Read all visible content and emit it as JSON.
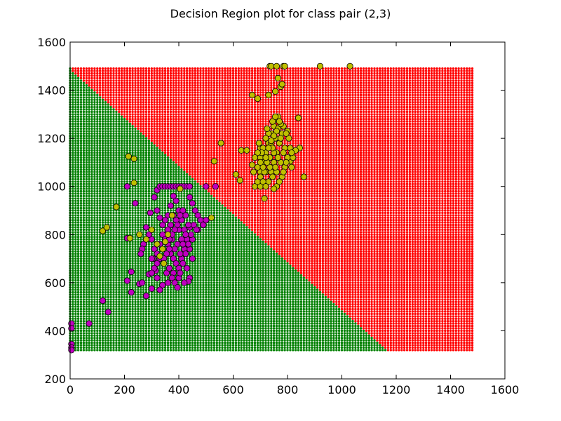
{
  "title": "Decision Region plot for class pair (2,3)",
  "colors": {
    "region_class_2": "#008000",
    "region_class_3": "#ff0000",
    "points_class_2": "#bf00bf",
    "points_class_3": "#bfbf00",
    "point_edge": "#000000"
  },
  "chart_data": {
    "type": "scatter",
    "title": "Decision Region plot for class pair (2,3)",
    "xlabel": "",
    "ylabel": "",
    "xlim": [
      0,
      1600
    ],
    "ylim": [
      200,
      1600
    ],
    "xticks": [
      "0",
      "200",
      "400",
      "600",
      "800",
      "1000",
      "1200",
      "1400",
      "1600"
    ],
    "yticks": [
      "200",
      "400",
      "600",
      "800",
      "1000",
      "1200",
      "1400",
      "1600"
    ],
    "grid": false,
    "decision_region": {
      "grid_x_range": [
        0,
        1480
      ],
      "grid_y_range": [
        320,
        1490
      ],
      "grid_step": 10,
      "boundary_line": [
        [
          0,
          1490
        ],
        [
          1160,
          320
        ]
      ],
      "region_below_boundary": "class 2 (green)",
      "region_above_boundary": "class 3 (red)"
    },
    "series": [
      {
        "color": "#bf00bf",
        "points": [
          [
            5,
            430
          ],
          [
            5,
            410
          ],
          [
            5,
            345
          ],
          [
            5,
            330
          ],
          [
            5,
            320
          ],
          [
            70,
            430
          ],
          [
            120,
            525
          ],
          [
            140,
            478
          ],
          [
            210,
            785
          ],
          [
            210,
            1000
          ],
          [
            210,
            608
          ],
          [
            225,
            645
          ],
          [
            225,
            560
          ],
          [
            240,
            930
          ],
          [
            255,
            595
          ],
          [
            265,
            600
          ],
          [
            280,
            545
          ],
          [
            290,
            635
          ],
          [
            300,
            575
          ],
          [
            305,
            700
          ],
          [
            295,
            890
          ],
          [
            310,
            955
          ],
          [
            320,
            985
          ],
          [
            330,
            1000
          ],
          [
            340,
            1000
          ],
          [
            350,
            1000
          ],
          [
            360,
            1000
          ],
          [
            370,
            1000
          ],
          [
            380,
            1000
          ],
          [
            390,
            1000
          ],
          [
            400,
            1000
          ],
          [
            410,
            1000
          ],
          [
            420,
            1000
          ],
          [
            430,
            1000
          ],
          [
            440,
            1000
          ],
          [
            500,
            1000
          ],
          [
            535,
            1000
          ],
          [
            440,
            955
          ],
          [
            450,
            930
          ],
          [
            460,
            900
          ],
          [
            470,
            880
          ],
          [
            480,
            860
          ],
          [
            490,
            840
          ],
          [
            500,
            860
          ],
          [
            470,
            820
          ],
          [
            440,
            830
          ],
          [
            450,
            780
          ],
          [
            440,
            740
          ],
          [
            450,
            700
          ],
          [
            430,
            660
          ],
          [
            440,
            620
          ],
          [
            435,
            605
          ],
          [
            420,
            600
          ],
          [
            400,
            620
          ],
          [
            380,
            640
          ],
          [
            360,
            600
          ],
          [
            340,
            590
          ],
          [
            330,
            570
          ],
          [
            320,
            620
          ],
          [
            315,
            650
          ],
          [
            300,
            700
          ],
          [
            310,
            740
          ],
          [
            300,
            780
          ],
          [
            290,
            800
          ],
          [
            280,
            830
          ],
          [
            270,
            760
          ],
          [
            265,
            740
          ],
          [
            260,
            720
          ],
          [
            320,
            900
          ],
          [
            330,
            870
          ],
          [
            340,
            840
          ],
          [
            350,
            800
          ],
          [
            360,
            760
          ],
          [
            370,
            720
          ],
          [
            380,
            700
          ],
          [
            390,
            680
          ],
          [
            400,
            660
          ],
          [
            410,
            700
          ],
          [
            420,
            740
          ],
          [
            430,
            780
          ],
          [
            420,
            820
          ],
          [
            410,
            860
          ],
          [
            400,
            900
          ],
          [
            390,
            940
          ],
          [
            380,
            960
          ],
          [
            370,
            920
          ],
          [
            360,
            880
          ],
          [
            350,
            860
          ],
          [
            340,
            800
          ],
          [
            330,
            760
          ],
          [
            320,
            720
          ],
          [
            345,
            680
          ],
          [
            355,
            640
          ],
          [
            365,
            660
          ],
          [
            375,
            620
          ],
          [
            385,
            600
          ],
          [
            395,
            580
          ],
          [
            405,
            640
          ],
          [
            415,
            680
          ],
          [
            425,
            720
          ],
          [
            435,
            760
          ],
          [
            445,
            800
          ],
          [
            455,
            840
          ],
          [
            465,
            820
          ],
          [
            410,
            780
          ],
          [
            400,
            820
          ],
          [
            390,
            860
          ],
          [
            380,
            880
          ],
          [
            370,
            840
          ],
          [
            360,
            820
          ],
          [
            350,
            780
          ],
          [
            340,
            740
          ],
          [
            330,
            700
          ],
          [
            320,
            680
          ],
          [
            310,
            660
          ],
          [
            300,
            640
          ],
          [
            395,
            760
          ],
          [
            385,
            740
          ],
          [
            375,
            780
          ],
          [
            365,
            740
          ],
          [
            355,
            720
          ],
          [
            345,
            700
          ],
          [
            405,
            720
          ],
          [
            415,
            760
          ],
          [
            425,
            800
          ],
          [
            435,
            840
          ],
          [
            425,
            880
          ],
          [
            415,
            900
          ],
          [
            405,
            880
          ],
          [
            395,
            840
          ],
          [
            385,
            820
          ],
          [
            375,
            800
          ],
          [
            365,
            780
          ]
        ]
      },
      {
        "color": "#bfbf00",
        "points": [
          [
            120,
            815
          ],
          [
            135,
            830
          ],
          [
            170,
            915
          ],
          [
            215,
            1125
          ],
          [
            220,
            785
          ],
          [
            235,
            1115
          ],
          [
            235,
            1015
          ],
          [
            255,
            800
          ],
          [
            280,
            780
          ],
          [
            300,
            820
          ],
          [
            320,
            760
          ],
          [
            330,
            710
          ],
          [
            340,
            740
          ],
          [
            345,
            680
          ],
          [
            350,
            770
          ],
          [
            360,
            800
          ],
          [
            375,
            880
          ],
          [
            405,
            990
          ],
          [
            520,
            870
          ],
          [
            530,
            1105
          ],
          [
            555,
            1180
          ],
          [
            610,
            1050
          ],
          [
            625,
            1025
          ],
          [
            630,
            1150
          ],
          [
            650,
            1150
          ],
          [
            670,
            1380
          ],
          [
            690,
            1365
          ],
          [
            700,
            1160
          ],
          [
            715,
            950
          ],
          [
            730,
            1380
          ],
          [
            735,
            1500
          ],
          [
            740,
            1500
          ],
          [
            755,
            1395
          ],
          [
            760,
            1500
          ],
          [
            765,
            1450
          ],
          [
            775,
            1415
          ],
          [
            780,
            1425
          ],
          [
            785,
            1500
          ],
          [
            790,
            1500
          ],
          [
            920,
            1500
          ],
          [
            1030,
            1500
          ],
          [
            840,
            1285
          ],
          [
            845,
            1160
          ],
          [
            860,
            1040
          ],
          [
            800,
            1230
          ],
          [
            810,
            1160
          ],
          [
            810,
            1105
          ],
          [
            815,
            1080
          ],
          [
            760,
            1000
          ],
          [
            750,
            990
          ],
          [
            680,
            1000
          ],
          [
            670,
            1090
          ],
          [
            700,
            1000
          ],
          [
            690,
            1020
          ],
          [
            700,
            1060
          ],
          [
            710,
            1100
          ],
          [
            720,
            1140
          ],
          [
            730,
            1180
          ],
          [
            740,
            1220
          ],
          [
            750,
            1250
          ],
          [
            760,
            1280
          ],
          [
            765,
            1290
          ],
          [
            720,
            1060
          ],
          [
            730,
            1020
          ],
          [
            740,
            1060
          ],
          [
            750,
            1100
          ],
          [
            760,
            1140
          ],
          [
            770,
            1180
          ],
          [
            780,
            1220
          ],
          [
            790,
            1160
          ],
          [
            800,
            1120
          ],
          [
            790,
            1080
          ],
          [
            780,
            1040
          ],
          [
            770,
            1020
          ],
          [
            760,
            1060
          ],
          [
            750,
            1140
          ],
          [
            740,
            1180
          ],
          [
            730,
            1220
          ],
          [
            720,
            1200
          ],
          [
            710,
            1160
          ],
          [
            700,
            1120
          ],
          [
            690,
            1080
          ],
          [
            700,
            1040
          ],
          [
            710,
            1020
          ],
          [
            720,
            1000
          ],
          [
            735,
            1120
          ],
          [
            745,
            1160
          ],
          [
            755,
            1200
          ],
          [
            765,
            1240
          ],
          [
            775,
            1200
          ],
          [
            785,
            1140
          ],
          [
            795,
            1100
          ],
          [
            785,
            1060
          ],
          [
            775,
            1100
          ],
          [
            765,
            1120
          ],
          [
            755,
            1080
          ],
          [
            745,
            1040
          ],
          [
            735,
            1080
          ],
          [
            725,
            1100
          ],
          [
            715,
            1060
          ],
          [
            705,
            1140
          ],
          [
            695,
            1180
          ],
          [
            805,
            1200
          ],
          [
            795,
            1220
          ],
          [
            785,
            1250
          ],
          [
            775,
            1260
          ],
          [
            770,
            1270
          ],
          [
            760,
            1230
          ],
          [
            750,
            1210
          ],
          [
            740,
            1190
          ],
          [
            730,
            1160
          ],
          [
            720,
            1120
          ],
          [
            710,
            1080
          ],
          [
            700,
            1100
          ],
          [
            690,
            1140
          ],
          [
            680,
            1120
          ],
          [
            675,
            1060
          ],
          [
            830,
            1150
          ],
          [
            820,
            1120
          ],
          [
            815,
            1140
          ],
          [
            745,
            1270
          ],
          [
            755,
            1290
          ],
          [
            725,
            1240
          ]
        ]
      }
    ]
  }
}
